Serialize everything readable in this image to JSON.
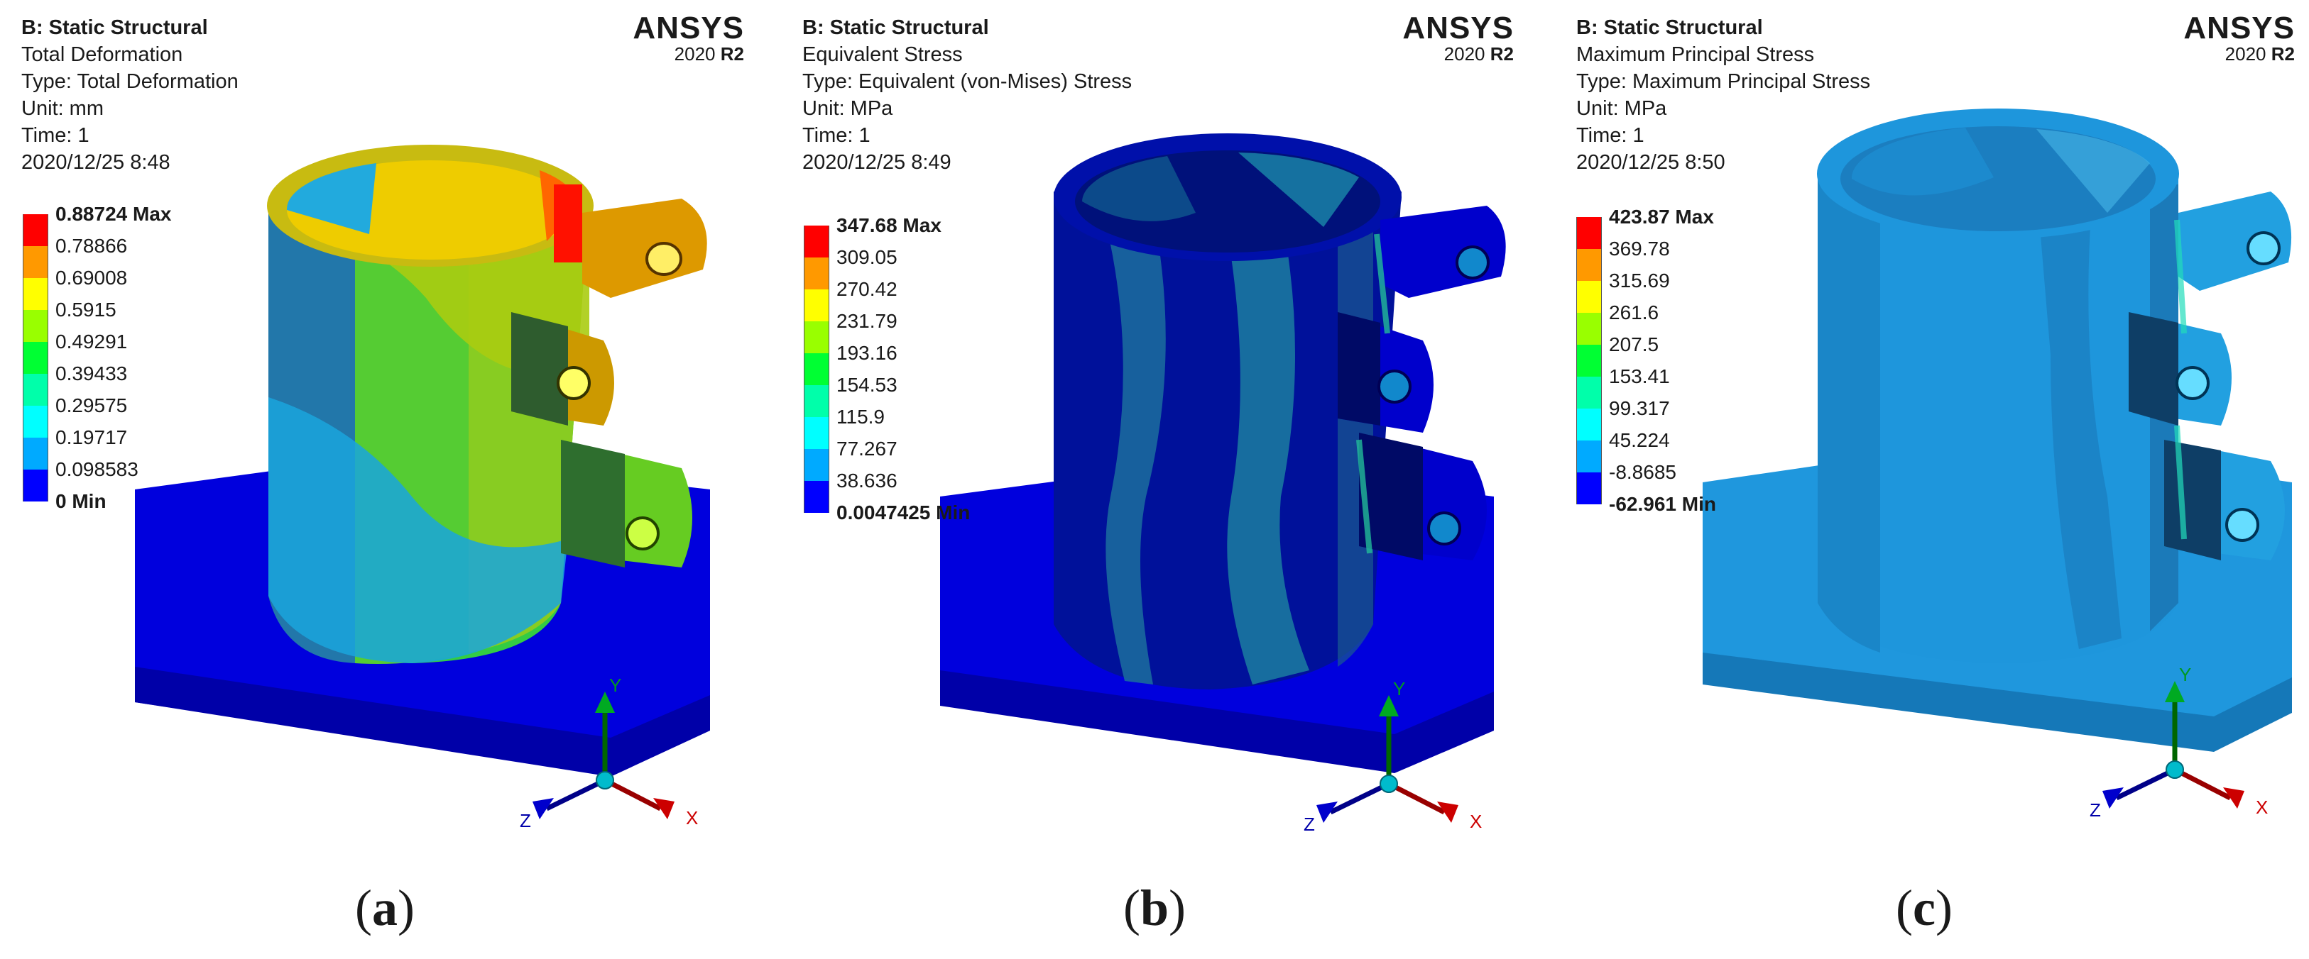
{
  "brand": {
    "name": "ANSYS",
    "year": "2020",
    "release": "R2"
  },
  "panels": [
    {
      "id": "a",
      "system": "B: Static Structural",
      "result": "Total Deformation",
      "type": "Type: Total Deformation",
      "unit": "Unit: mm",
      "time": "Time: 1",
      "date": "2020/12/25 8:48",
      "legend": [
        "0.88724 Max",
        "0.78866",
        "0.69008",
        "0.5915",
        "0.49291",
        "0.39433",
        "0.29575",
        "0.19717",
        "0.098583",
        "0 Min"
      ],
      "caption": "a"
    },
    {
      "id": "b",
      "system": "B: Static Structural",
      "result": "Equivalent Stress",
      "type": "Type: Equivalent (von-Mises) Stress",
      "unit": "Unit: MPa",
      "time": "Time: 1",
      "date": "2020/12/25 8:49",
      "legend": [
        "347.68 Max",
        "309.05",
        "270.42",
        "231.79",
        "193.16",
        "154.53",
        "115.9",
        "77.267",
        "38.636",
        "0.0047425 Min"
      ],
      "caption": "b"
    },
    {
      "id": "c",
      "system": "B: Static Structural",
      "result": "Maximum Principal Stress",
      "type": "Type: Maximum Principal Stress",
      "unit": "Unit: MPa",
      "time": "Time: 1",
      "date": "2020/12/25 8:50",
      "legend": [
        "423.87 Max",
        "369.78",
        "315.69",
        "261.6",
        "207.5",
        "153.41",
        "99.317",
        "45.224",
        "-8.8685",
        "-62.961 Min"
      ],
      "caption": "c"
    }
  ],
  "legend_colors": [
    "#ff0000",
    "#ff9900",
    "#ffff00",
    "#99ff00",
    "#00ff33",
    "#00ffaa",
    "#00ffff",
    "#00aaff",
    "#0000ff"
  ],
  "axes": {
    "y": "Y",
    "x": "X",
    "z": "Z"
  },
  "caption_open": "(",
  "caption_close": ")"
}
